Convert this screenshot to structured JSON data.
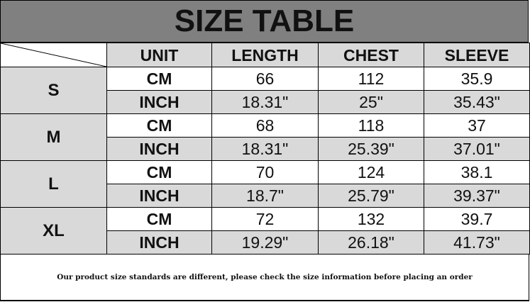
{
  "title": "SIZE TABLE",
  "headers": [
    "UNIT",
    "LENGTH",
    "CHEST",
    "SLEEVE"
  ],
  "rows": [
    {
      "size": "S",
      "cm": {
        "unit": "CM",
        "values": [
          "66",
          "112",
          "35.9"
        ]
      },
      "inch": {
        "unit": "INCH",
        "values": [
          "18.31\"",
          "25\"",
          "35.43\""
        ]
      }
    },
    {
      "size": "M",
      "cm": {
        "unit": "CM",
        "values": [
          "68",
          "118",
          "37"
        ]
      },
      "inch": {
        "unit": "INCH",
        "values": [
          "18.31\"",
          "25.39\"",
          "37.01\""
        ]
      }
    },
    {
      "size": "L",
      "cm": {
        "unit": "CM",
        "values": [
          "70",
          "124",
          "38.1"
        ]
      },
      "inch": {
        "unit": "INCH",
        "values": [
          "18.7\"",
          "25.79\"",
          "39.37\""
        ]
      }
    },
    {
      "size": "XL",
      "cm": {
        "unit": "CM",
        "values": [
          "72",
          "132",
          "39.7"
        ]
      },
      "inch": {
        "unit": "INCH",
        "values": [
          "19.29\"",
          "26.18\"",
          "41.73\""
        ]
      }
    }
  ],
  "footer": "Our product size standards are different, please check the size information before placing an order",
  "colors": {
    "title_bg": "#808080",
    "shade": "#d9d9d9"
  }
}
